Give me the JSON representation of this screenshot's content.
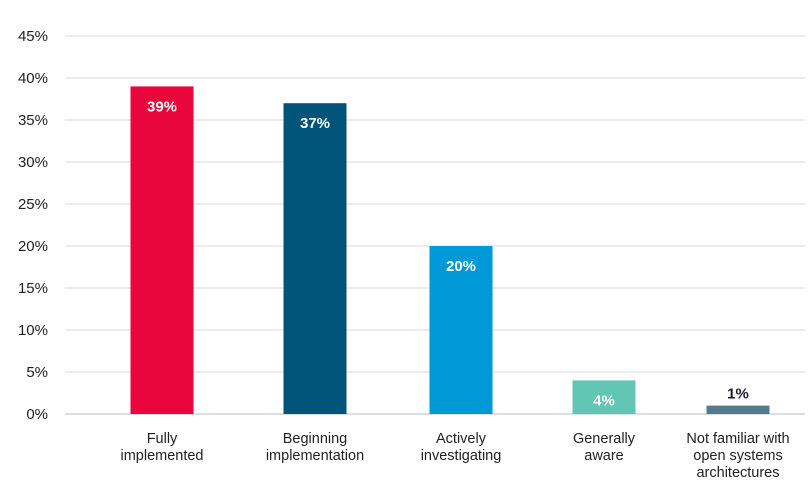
{
  "chart_data": {
    "type": "bar",
    "categories": [
      [
        "Fully",
        "implemented"
      ],
      [
        "Beginning",
        "implementation"
      ],
      [
        "Actively",
        "investigating"
      ],
      [
        "Generally",
        "aware"
      ],
      [
        "Not familiar with",
        "open systems",
        "architectures"
      ]
    ],
    "values": [
      39,
      37,
      20,
      4,
      1
    ],
    "value_labels": [
      "39%",
      "37%",
      "20%",
      "4%",
      "1%"
    ],
    "colors": [
      "#e8063c",
      "#005479",
      "#0099d8",
      "#62c6b5",
      "#557a8c"
    ],
    "label_colors": [
      "#ffffff",
      "#ffffff",
      "#ffffff",
      "#ffffff",
      "#1a1a2e"
    ],
    "ylim": [
      0,
      45
    ],
    "yticks": [
      0,
      5,
      10,
      15,
      20,
      25,
      30,
      35,
      40,
      45
    ],
    "ytick_labels": [
      "0%",
      "5%",
      "10%",
      "15%",
      "20%",
      "25%",
      "30%",
      "35%",
      "40%",
      "45%"
    ],
    "grid": true,
    "title": "",
    "xlabel": "",
    "ylabel": ""
  }
}
